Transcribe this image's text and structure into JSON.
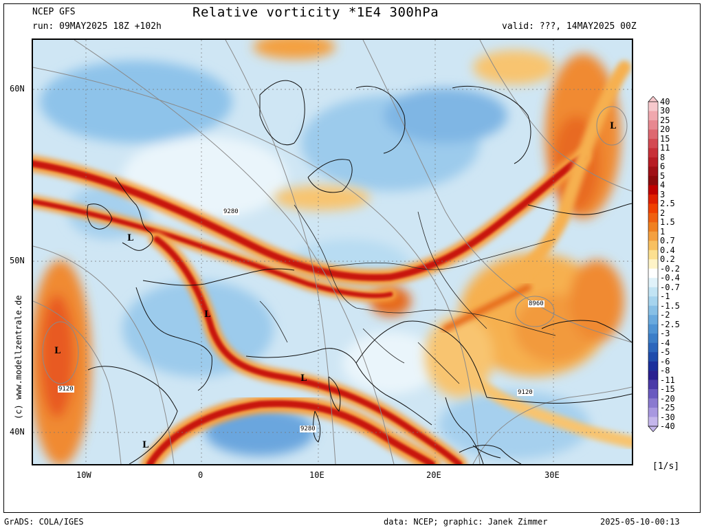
{
  "header": {
    "model": "NCEP GFS",
    "run": "run: 09MAY2025 18Z +102h",
    "title": "Relative vorticity *1E4 300hPa",
    "valid": "valid: ???, 14MAY2025 00Z"
  },
  "map": {
    "lat_labels": [
      "60N",
      "50N",
      "40N"
    ],
    "lon_labels": [
      "10W",
      "0",
      "10E",
      "20E",
      "30E"
    ],
    "low_marker": "L",
    "contour_labels": [
      "9280",
      "8960",
      "9120",
      "9120",
      "9280"
    ],
    "credit": "(c) www.modellzentrale.de"
  },
  "colorbar": {
    "labels": [
      "40",
      "30",
      "25",
      "20",
      "15",
      "11",
      "8",
      "6",
      "5",
      "4",
      "3",
      "2.5",
      "2",
      "1.5",
      "1",
      "0.7",
      "0.4",
      "0.2",
      "-0.2",
      "-0.4",
      "-0.7",
      "-1",
      "-1.5",
      "-2",
      "-2.5",
      "-3",
      "-4",
      "-5",
      "-6",
      "-8",
      "-11",
      "-15",
      "-20",
      "-25",
      "-30",
      "-40"
    ],
    "colors": [
      "#f7c8cc",
      "#f0a8ae",
      "#e88890",
      "#de6870",
      "#d44a52",
      "#c83038",
      "#b81c24",
      "#a01016",
      "#8c0a0c",
      "#c00000",
      "#e02000",
      "#f04000",
      "#f06010",
      "#f08020",
      "#f4a040",
      "#f8c060",
      "#fce090",
      "#fff4c8",
      "#ffffff",
      "#e0f2fa",
      "#c2e4f4",
      "#a6d4ee",
      "#88c0e6",
      "#6aaade",
      "#5094d4",
      "#3c7ec8",
      "#2c66bc",
      "#1f4cac",
      "#1a2f9c",
      "#2a2090",
      "#4a3aa8",
      "#6a5ac0",
      "#8a7ad0",
      "#a898e0",
      "#c4b6ec"
    ],
    "units": "[1/s]"
  },
  "footer": {
    "software": "GrADS: COLA/IGES",
    "data": "data: NCEP; graphic: Janek Zimmer",
    "date": "2025-05-10-00:13"
  }
}
